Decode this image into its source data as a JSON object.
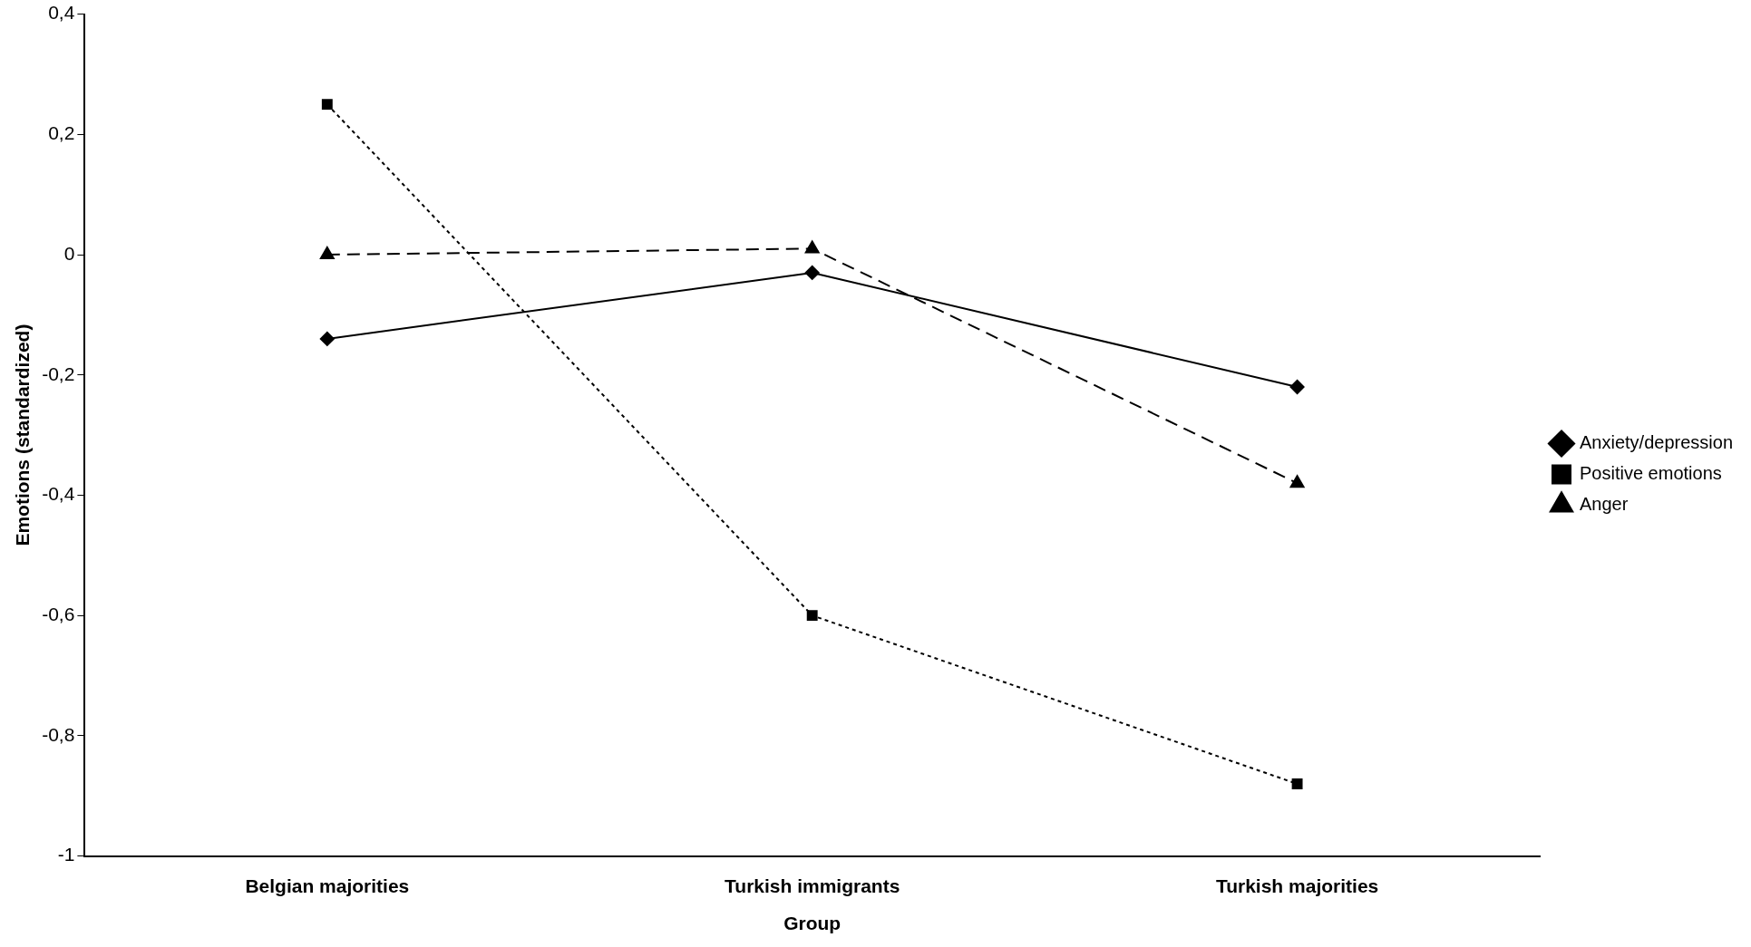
{
  "chart_data": {
    "type": "line",
    "xlabel": "Group",
    "ylabel": "Emotions (standardized)",
    "categories": [
      "Belgian majorities",
      "Turkish immigrants",
      "Turkish majorities"
    ],
    "series": [
      {
        "name": "Anxiety/depression",
        "color": "#000000",
        "values": [
          -0.14,
          -0.03,
          -0.22
        ],
        "marker": "diamond",
        "line_style": "solid"
      },
      {
        "name": "Positive emotions",
        "color": "#000000",
        "values": [
          0.25,
          -0.6,
          -0.88
        ],
        "marker": "square",
        "line_style": "dotted"
      },
      {
        "name": "Anger",
        "color": "#000000",
        "values": [
          0.0,
          0.01,
          -0.38
        ],
        "marker": "triangle",
        "line_style": "dashed"
      }
    ],
    "ylim": [
      -1,
      0.4
    ],
    "yticks": [
      {
        "value": 0.4,
        "label": "0,4"
      },
      {
        "value": 0.2,
        "label": "0,2"
      },
      0,
      {
        "value": -0.2,
        "label": "-0,2"
      },
      {
        "value": -0.4,
        "label": "-0,4"
      },
      {
        "value": -0.6,
        "label": "-0,6"
      },
      {
        "value": -0.8,
        "label": "-0,8"
      },
      -1
    ],
    "grid": false,
    "legend": "right"
  }
}
